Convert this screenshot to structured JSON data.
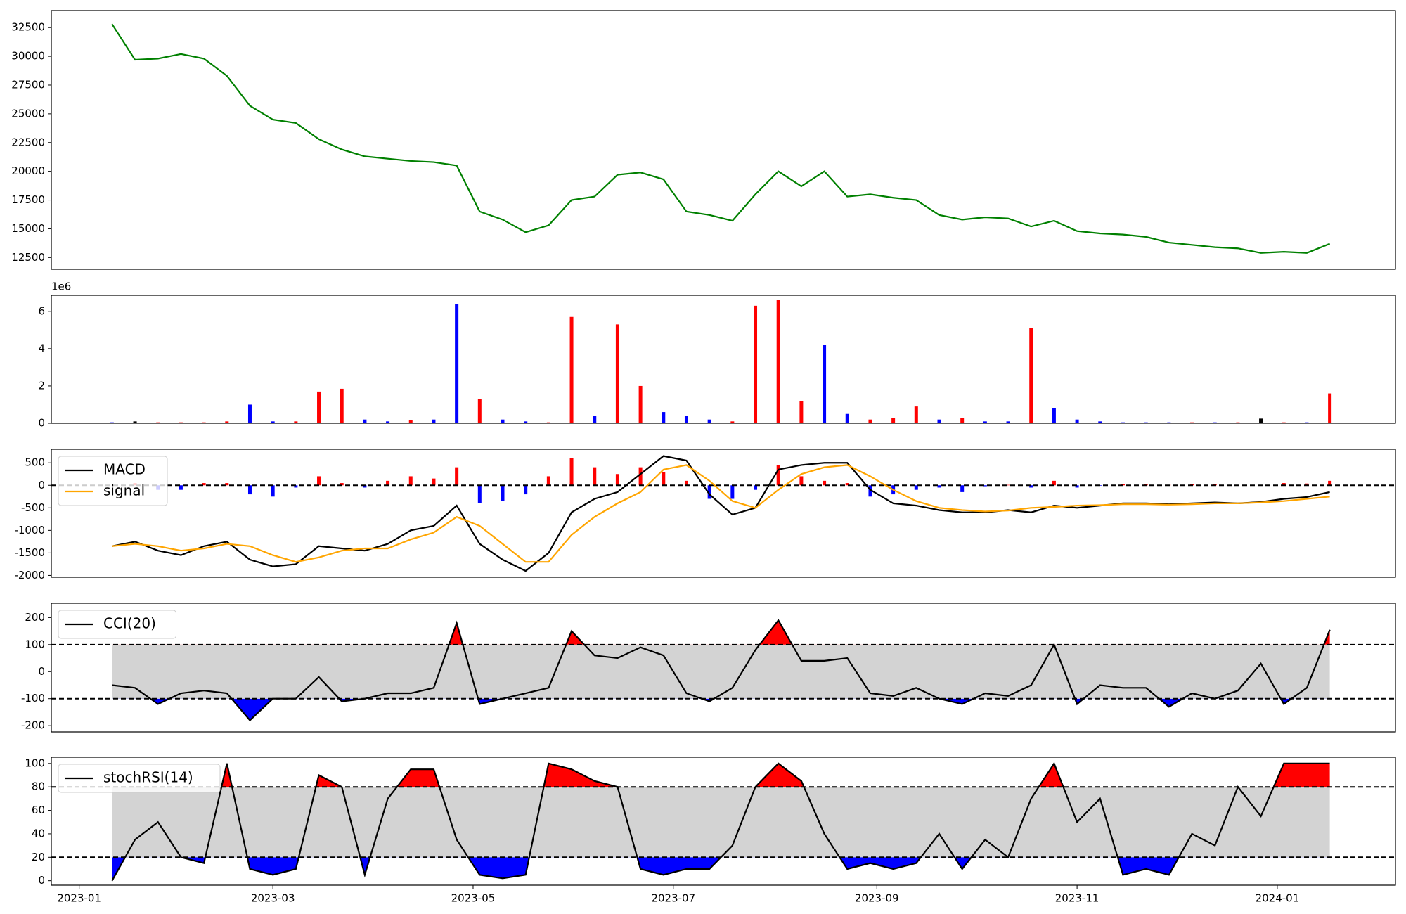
{
  "chart_data": [
    {
      "type": "line",
      "color": "green",
      "x": [
        10,
        17,
        24,
        31,
        38,
        45,
        52,
        59,
        66,
        73,
        80,
        87,
        94,
        101,
        108,
        115,
        122,
        129,
        136,
        143,
        150,
        157,
        164,
        171,
        178,
        185,
        192,
        199,
        206,
        213,
        220,
        227,
        234,
        241,
        248,
        255,
        262,
        269,
        276,
        283,
        290,
        297,
        304,
        311,
        318,
        325,
        332,
        339,
        346,
        353,
        360,
        367,
        374,
        381
      ],
      "values": [
        32800,
        29700,
        29800,
        30200,
        29800,
        28300,
        25700,
        24500,
        24200,
        22800,
        21900,
        21300,
        21100,
        20900,
        20800,
        20500,
        16500,
        15800,
        14700,
        15300,
        17500,
        17800,
        19700,
        19900,
        19300,
        16500,
        16200,
        15700,
        18000,
        20000,
        18700,
        20000,
        17800,
        18000,
        17700,
        17500,
        16200,
        15800,
        16000,
        15900,
        15200,
        15700,
        14800,
        14600,
        14500,
        14300,
        13800,
        13600,
        13400,
        13300,
        12900,
        13000,
        12900,
        13700
      ],
      "xlim": [
        -8.5,
        401
      ],
      "ylim": [
        11480,
        33980
      ],
      "yticks": [
        12500,
        15000,
        17500,
        20000,
        22500,
        25000,
        27500,
        30000,
        32500
      ]
    },
    {
      "type": "bar",
      "x": [
        10,
        17,
        24,
        31,
        38,
        45,
        52,
        59,
        66,
        73,
        80,
        87,
        94,
        101,
        108,
        115,
        122,
        129,
        136,
        143,
        150,
        157,
        164,
        171,
        178,
        185,
        192,
        199,
        206,
        213,
        220,
        227,
        234,
        241,
        248,
        255,
        262,
        269,
        276,
        283,
        290,
        297,
        304,
        311,
        318,
        325,
        332,
        339,
        346,
        353,
        360,
        367,
        374,
        381
      ],
      "values": [
        50000,
        100000,
        50000,
        50000,
        50000,
        100000,
        1000000,
        100000,
        100000,
        1700000,
        1850000,
        200000,
        100000,
        150000,
        200000,
        6400000,
        1300000,
        200000,
        100000,
        50000,
        5700000,
        400000,
        5300000,
        2000000,
        600000,
        400000,
        200000,
        100000,
        6300000,
        6600000,
        1200000,
        4200000,
        500000,
        200000,
        300000,
        900000,
        200000,
        300000,
        100000,
        100000,
        5100000,
        800000,
        200000,
        100000,
        50000,
        50000,
        50000,
        50000,
        50000,
        50000,
        250000,
        50000,
        50000,
        1600000
      ],
      "colors": [
        "blue",
        "black",
        "red",
        "red",
        "red",
        "red",
        "blue",
        "blue",
        "red",
        "red",
        "red",
        "blue",
        "blue",
        "red",
        "blue",
        "blue",
        "red",
        "blue",
        "blue",
        "red",
        "red",
        "blue",
        "red",
        "red",
        "blue",
        "blue",
        "blue",
        "red",
        "red",
        "red",
        "red",
        "blue",
        "blue",
        "red",
        "red",
        "red",
        "blue",
        "red",
        "blue",
        "blue",
        "red",
        "blue",
        "blue",
        "blue",
        "blue",
        "blue",
        "blue",
        "red",
        "blue",
        "red",
        "black",
        "red",
        "blue",
        "red"
      ],
      "xlim": [
        -8.5,
        401
      ],
      "ylim": [
        0,
        6860000
      ],
      "yticks": [
        0,
        {
          "value": 2000000,
          "label": "2"
        },
        {
          "value": 4000000,
          "label": "4"
        },
        {
          "value": 6000000,
          "label": "6"
        }
      ],
      "y_offset_label": "1e6"
    },
    {
      "type": "line",
      "x": [
        10,
        17,
        24,
        31,
        38,
        45,
        52,
        59,
        66,
        73,
        80,
        87,
        94,
        101,
        108,
        115,
        122,
        129,
        136,
        143,
        150,
        157,
        164,
        171,
        178,
        185,
        192,
        199,
        206,
        213,
        220,
        227,
        234,
        241,
        248,
        255,
        262,
        269,
        276,
        283,
        290,
        297,
        304,
        311,
        318,
        325,
        332,
        339,
        346,
        353,
        360,
        367,
        374,
        381
      ],
      "series": [
        {
          "name": "MACD",
          "color": "black",
          "values": [
            -1350,
            -1250,
            -1450,
            -1550,
            -1350,
            -1250,
            -1650,
            -1800,
            -1750,
            -1350,
            -1400,
            -1450,
            -1300,
            -1000,
            -900,
            -450,
            -1300,
            -1650,
            -1900,
            -1500,
            -600,
            -300,
            -150,
            250,
            650,
            550,
            -200,
            -650,
            -500,
            350,
            450,
            500,
            500,
            -100,
            -400,
            -450,
            -550,
            -600,
            -600,
            -550,
            -600,
            -450,
            -500,
            -450,
            -400,
            -400,
            -420,
            -400,
            -380,
            -400,
            -370,
            -300,
            -260,
            -150
          ]
        },
        {
          "name": "signal",
          "color": "orange",
          "values": [
            -1350,
            -1300,
            -1350,
            -1450,
            -1400,
            -1300,
            -1350,
            -1550,
            -1700,
            -1600,
            -1450,
            -1400,
            -1400,
            -1200,
            -1050,
            -700,
            -900,
            -1300,
            -1700,
            -1700,
            -1100,
            -700,
            -400,
            -150,
            350,
            450,
            100,
            -350,
            -500,
            -100,
            250,
            400,
            450,
            200,
            -100,
            -350,
            -500,
            -550,
            -580,
            -560,
            -500,
            -480,
            -450,
            -440,
            -420,
            -420,
            -430,
            -420,
            -400,
            -400,
            -380,
            -350,
            -300,
            -250
          ]
        }
      ],
      "hist": [
        0,
        50,
        -100,
        -100,
        50,
        50,
        -200,
        -250,
        -50,
        200,
        50,
        -50,
        100,
        200,
        150,
        400,
        -400,
        -350,
        -200,
        200,
        600,
        400,
        250,
        400,
        300,
        100,
        -300,
        -300,
        -100,
        450,
        200,
        100,
        50,
        -250,
        -200,
        -100,
        -50,
        -150,
        -20,
        10,
        -50,
        100,
        -50,
        -10,
        20,
        20,
        10,
        20,
        20,
        0,
        10,
        50,
        40,
        100
      ],
      "hist_colors": {
        "up": "red",
        "down": "blue"
      },
      "hlines": [
        0
      ],
      "xlim": [
        -8.5,
        401
      ],
      "ylim": [
        -2040,
        800
      ],
      "yticks": [
        -2000,
        -1500,
        -1000,
        -500,
        0,
        500
      ],
      "legend": "upper left"
    },
    {
      "type": "line",
      "x": [
        10,
        17,
        24,
        31,
        38,
        45,
        52,
        59,
        66,
        73,
        80,
        87,
        94,
        101,
        108,
        115,
        122,
        129,
        136,
        143,
        150,
        157,
        164,
        171,
        178,
        185,
        192,
        199,
        206,
        213,
        220,
        227,
        234,
        241,
        248,
        255,
        262,
        269,
        276,
        283,
        290,
        297,
        304,
        311,
        318,
        325,
        332,
        339,
        346,
        353,
        360,
        367,
        374,
        381
      ],
      "series": [
        {
          "name": "CCI(20)",
          "color": "black",
          "values": [
            -50,
            -60,
            -120,
            -80,
            -70,
            -80,
            -180,
            -100,
            -100,
            -20,
            -110,
            -100,
            -80,
            -80,
            -60,
            180,
            -120,
            -100,
            -80,
            -60,
            150,
            60,
            50,
            90,
            60,
            -80,
            -110,
            -60,
            80,
            190,
            40,
            40,
            50,
            -80,
            -90,
            -60,
            -100,
            -120,
            -80,
            -90,
            -50,
            100,
            -120,
            -50,
            -60,
            -60,
            -130,
            -80,
            -100,
            -70,
            30,
            -120,
            -60,
            155
          ]
        }
      ],
      "hlines": [
        -100,
        100
      ],
      "band_color": "lightgray",
      "above_color": "red",
      "below_color": "blue",
      "xlim": [
        -8.5,
        401
      ],
      "ylim": [
        -223,
        253
      ],
      "yticks": [
        -200,
        -100,
        0,
        100,
        200
      ],
      "legend": "upper left"
    },
    {
      "type": "line",
      "x": [
        10,
        17,
        24,
        31,
        38,
        45,
        52,
        59,
        66,
        73,
        80,
        87,
        94,
        101,
        108,
        115,
        122,
        129,
        136,
        143,
        150,
        157,
        164,
        171,
        178,
        185,
        192,
        199,
        206,
        213,
        220,
        227,
        234,
        241,
        248,
        255,
        262,
        269,
        276,
        283,
        290,
        297,
        304,
        311,
        318,
        325,
        332,
        339,
        346,
        353,
        360,
        367,
        374,
        381
      ],
      "series": [
        {
          "name": "stochRSI(14)",
          "color": "black",
          "values": [
            0,
            35,
            50,
            20,
            15,
            100,
            10,
            5,
            10,
            90,
            80,
            5,
            70,
            95,
            95,
            35,
            5,
            2,
            5,
            100,
            95,
            85,
            80,
            10,
            5,
            10,
            10,
            30,
            80,
            100,
            85,
            40,
            10,
            15,
            10,
            15,
            40,
            10,
            35,
            20,
            70,
            100,
            50,
            70,
            5,
            10,
            5,
            40,
            30,
            80,
            55,
            100,
            100,
            100
          ]
        }
      ],
      "hlines": [
        20,
        80
      ],
      "band_color": "lightgray",
      "above_color": "red",
      "below_color": "blue",
      "xlim": [
        -8.5,
        401
      ],
      "ylim": [
        -3.8,
        105.3
      ],
      "yticks": [
        0,
        20,
        40,
        60,
        80,
        100
      ],
      "legend": "upper left",
      "xticks": [
        {
          "value": 0,
          "label": "2023-01"
        },
        {
          "value": 59,
          "label": "2023-03"
        },
        {
          "value": 120,
          "label": "2023-05"
        },
        {
          "value": 181,
          "label": "2023-07"
        },
        {
          "value": 243,
          "label": "2023-09"
        },
        {
          "value": 304,
          "label": "2023-11"
        },
        {
          "value": 365,
          "label": "2024-01"
        }
      ]
    }
  ]
}
